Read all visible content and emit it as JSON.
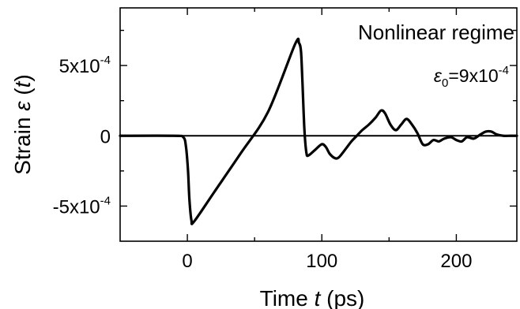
{
  "chart_data": {
    "type": "line",
    "title": "",
    "xlabel": {
      "pre": "Time ",
      "var": "t",
      "post": " (ps)"
    },
    "ylabel": {
      "pre": "Strain ",
      "sym": "ε",
      "open": " (",
      "var": "t",
      "close": ")"
    },
    "xlim": [
      -50,
      245
    ],
    "ylim": [
      -0.00075,
      0.00091
    ],
    "x_ticks": [
      {
        "value": 0,
        "label": "0"
      },
      {
        "value": 100,
        "label": "100"
      },
      {
        "value": 200,
        "label": "200"
      }
    ],
    "y_ticks": [
      {
        "value": -0.0005,
        "mant": "-5x10",
        "exp": "-4"
      },
      {
        "value": 0,
        "mant": "0",
        "exp": ""
      },
      {
        "value": 0.0005,
        "mant": "5x10",
        "exp": "-4"
      }
    ],
    "annotations": {
      "regime": "Nonlinear regime",
      "amplitude": {
        "sym": "ε",
        "sub": "0",
        "mant": "=9x10",
        "exp": "-4"
      }
    },
    "grid": false,
    "zero_line": true,
    "series": [
      {
        "x": [
          -50,
          -10,
          -3,
          -1,
          0.5,
          1.5,
          3,
          5,
          20,
          40,
          60,
          80,
          83,
          84.5,
          85.5,
          87,
          88.5,
          90,
          95,
          100,
          103,
          106,
          110,
          113,
          118,
          122,
          126,
          130,
          135,
          140,
          144,
          147,
          151,
          155,
          159,
          163,
          167,
          171,
          175,
          179,
          183,
          187,
          191,
          196,
          200,
          204,
          208,
          213,
          218,
          222,
          226,
          230,
          235,
          240,
          245
        ],
        "y": [
          0,
          0,
          -1e-05,
          -8e-05,
          -0.00025,
          -0.00045,
          -0.0006,
          -0.00061,
          -0.0004,
          -0.00012,
          0.00017,
          0.00065,
          0.00066,
          0.0006,
          0.0004,
          5e-05,
          -0.00012,
          -0.00014,
          -0.0001,
          -6e-05,
          -8e-05,
          -0.00013,
          -0.00016,
          -0.00015,
          -9e-05,
          -4e-05,
          0.0,
          4e-05,
          8e-05,
          0.00013,
          0.00018,
          0.00016,
          8e-05,
          4e-05,
          8e-05,
          0.00012,
          8e-05,
          2e-05,
          -6e-05,
          -6e-05,
          -3e-05,
          -4e-05,
          -2e-05,
          -1e-05,
          -3e-05,
          -4e-05,
          -1e-05,
          -2e-05,
          1e-05,
          3e-05,
          3e-05,
          1e-05,
          0.0,
          0.0,
          0.0
        ]
      }
    ]
  }
}
